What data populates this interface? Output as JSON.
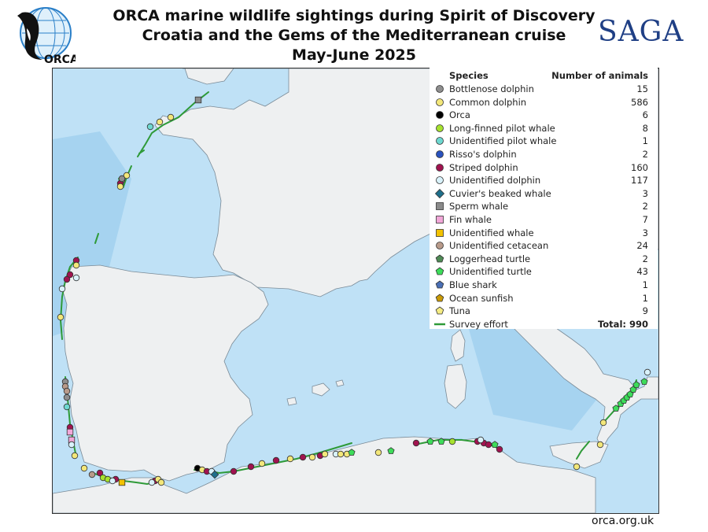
{
  "title": {
    "line1": "ORCA marine wildlife sightings during Spirit of Discovery",
    "line2": "Croatia and the Gems of the Mediterranean cruise",
    "line3": "May-June 2025"
  },
  "logos": {
    "orca_text": "ORCA",
    "saga_text": "SAGA"
  },
  "legend": {
    "species_header": "Species",
    "count_header": "Number of animals",
    "items": [
      {
        "name": "Bottlenose dolphin",
        "count": "15",
        "shape": "circle",
        "color": "#8e8e8e"
      },
      {
        "name": "Common dolphin",
        "count": "586",
        "shape": "circle",
        "color": "#f3e77a"
      },
      {
        "name": "Orca",
        "count": "6",
        "shape": "circle",
        "color": "#000000"
      },
      {
        "name": "Long-finned pilot whale",
        "count": "8",
        "shape": "circle",
        "color": "#a6e22e"
      },
      {
        "name": "Unidentified pilot whale",
        "count": "1",
        "shape": "circle",
        "color": "#6ed8d0"
      },
      {
        "name": "Risso's dolphin",
        "count": "2",
        "shape": "circle",
        "color": "#2a52be"
      },
      {
        "name": "Striped dolphin",
        "count": "160",
        "shape": "circle",
        "color": "#a0134f"
      },
      {
        "name": "Unidentified dolphin",
        "count": "117",
        "shape": "circle",
        "color": "#d9f2fb"
      },
      {
        "name": "Cuvier's beaked whale",
        "count": "3",
        "shape": "diamond",
        "color": "#1f6f8b"
      },
      {
        "name": "Sperm whale",
        "count": "2",
        "shape": "square",
        "color": "#8b8b8b"
      },
      {
        "name": "Fin whale",
        "count": "7",
        "shape": "square",
        "color": "#f2a7d8"
      },
      {
        "name": "Unidentified whale",
        "count": "3",
        "shape": "square",
        "color": "#f2c200"
      },
      {
        "name": "Unidentified cetacean",
        "count": "24",
        "shape": "circle",
        "color": "#b89a8a"
      },
      {
        "name": "Loggerhead turtle",
        "count": "2",
        "shape": "pentagon",
        "color": "#4f8a55"
      },
      {
        "name": "Unidentified turtle",
        "count": "43",
        "shape": "pentagon",
        "color": "#3ddc5a"
      },
      {
        "name": "Blue shark",
        "count": "1",
        "shape": "pentagon",
        "color": "#4a6fb5"
      },
      {
        "name": "Ocean sunfish",
        "count": "1",
        "shape": "pentagon",
        "color": "#c99a06"
      },
      {
        "name": "Tuna",
        "count": "9",
        "shape": "pentagon",
        "color": "#f5ec83"
      },
      {
        "name": "Survey effort",
        "count": "Total: 990",
        "shape": "line",
        "color": "#2e9a38"
      }
    ]
  },
  "colors": {
    "sea": "#bfe1f6",
    "deep_sea": "#a6d3f0",
    "land": "#eef0f1",
    "coast": "#7a8a96",
    "track": "#2e9a38"
  },
  "footer": "orca.org.uk"
}
